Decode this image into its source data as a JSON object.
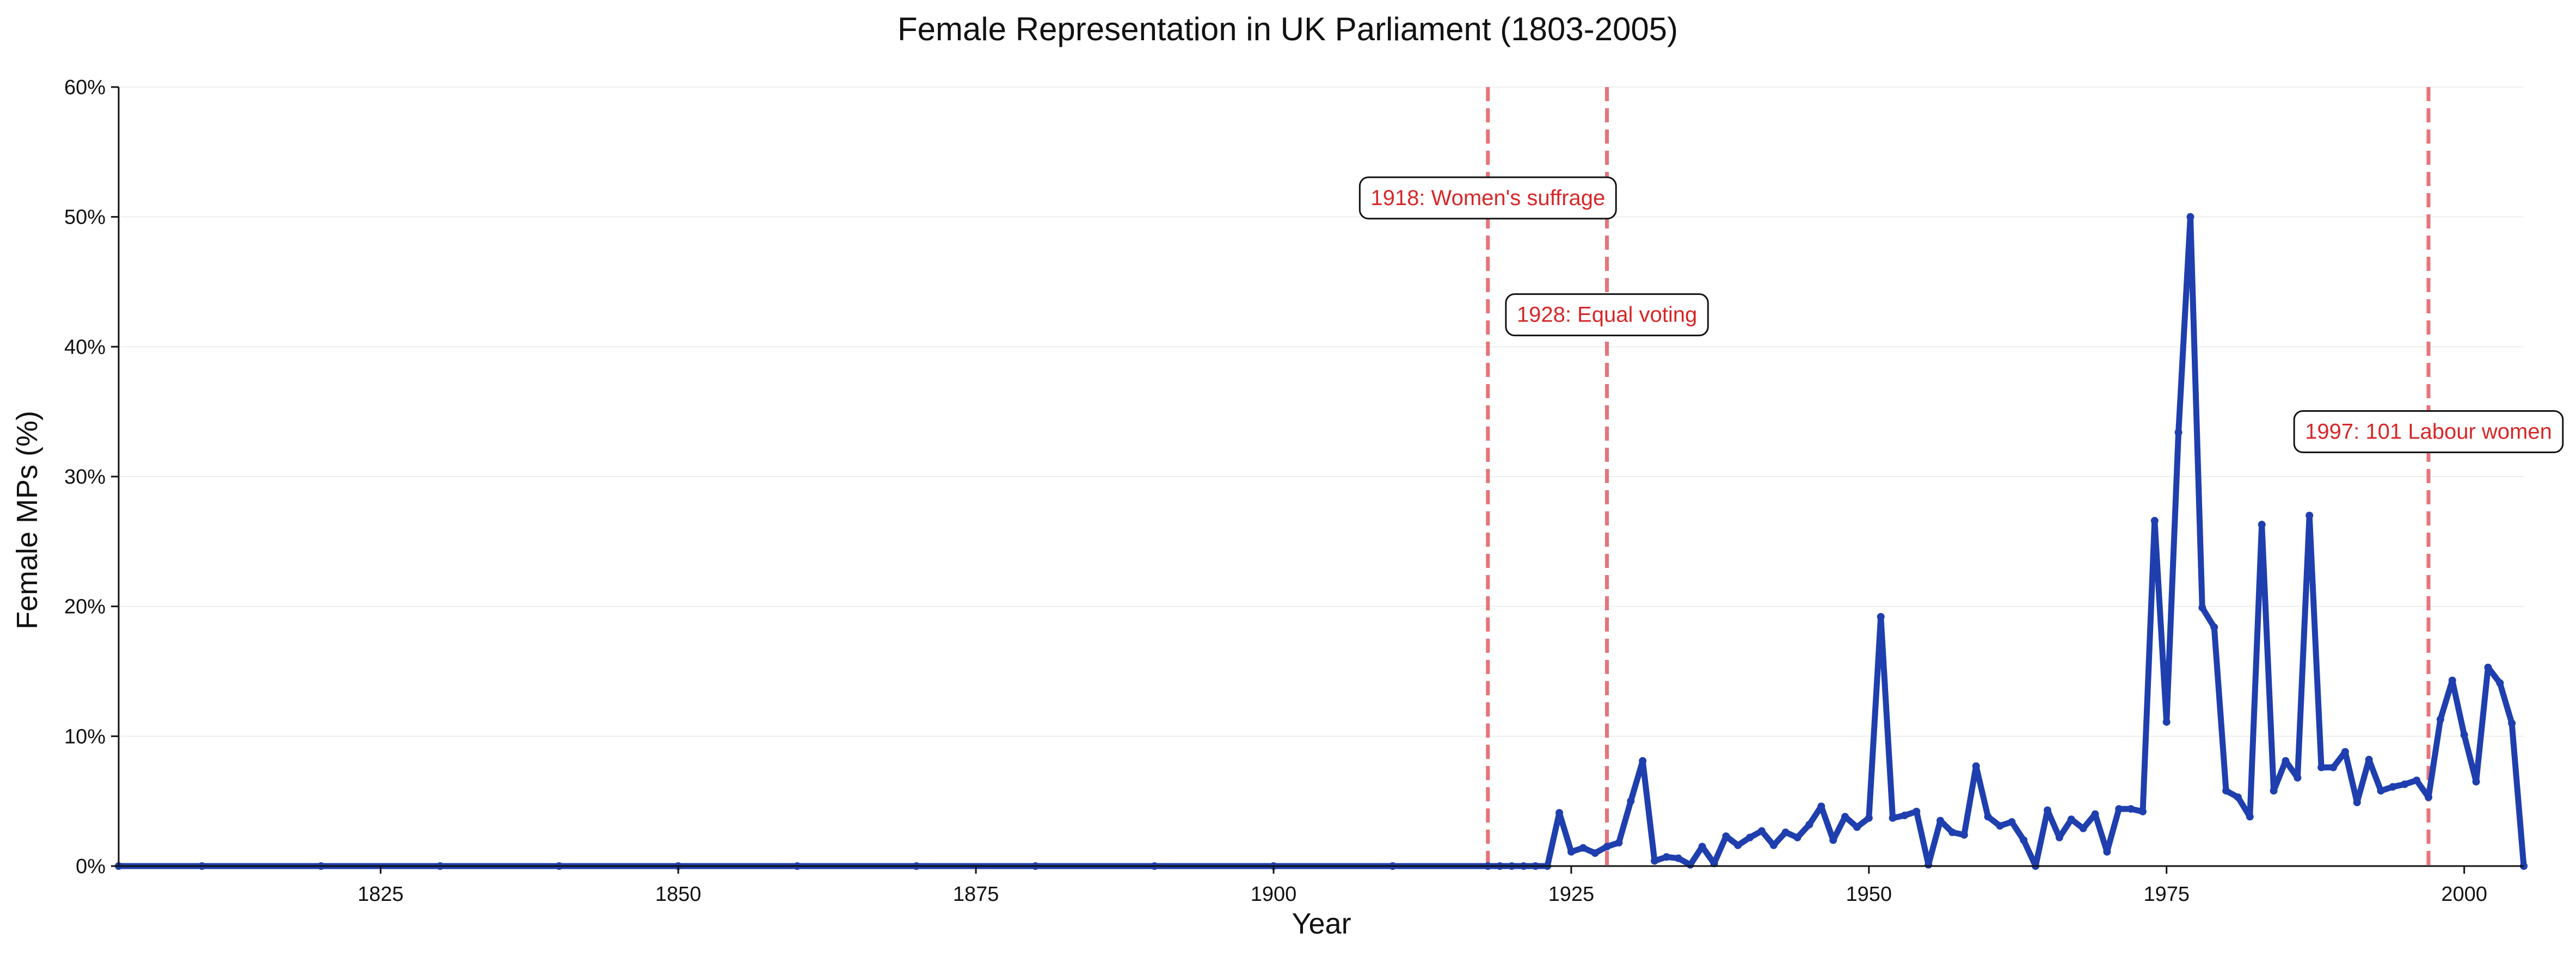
{
  "chart_data": {
    "type": "line",
    "title": "Female Representation in UK Parliament (1803-2005)",
    "xlabel": "Year",
    "ylabel": "Female MPs (%)",
    "xlim": [
      1803,
      2005
    ],
    "ylim": [
      0,
      60
    ],
    "x_ticks": [
      1825,
      1850,
      1875,
      1900,
      1925,
      1950,
      1975,
      2000
    ],
    "y_ticks": [
      0,
      10,
      20,
      30,
      40,
      50,
      60
    ],
    "y_tick_labels": [
      "0%",
      "10%",
      "20%",
      "30%",
      "40%",
      "50%",
      "60%"
    ],
    "grid": "horizontal, faint",
    "line_color": "#1f3fae",
    "annotation_color": "#d62728",
    "vline_color": "#e8737a",
    "annotations": [
      {
        "x": 1918,
        "label": "1918: Women's suffrage",
        "label_y": 51.5
      },
      {
        "x": 1928,
        "label": "1928: Equal voting",
        "label_y": 42.5
      },
      {
        "x": 1997,
        "label": "1997: 101 Labour women",
        "label_y": 33.5
      }
    ],
    "series": [
      {
        "x": [
          1803,
          1810,
          1820,
          1830,
          1840,
          1850,
          1860,
          1870,
          1880,
          1890,
          1900,
          1910,
          1918,
          1919,
          1920,
          1921,
          1922,
          1923,
          1924,
          1925,
          1926,
          1927,
          1928,
          1929,
          1930,
          1931,
          1932,
          1933,
          1934,
          1935,
          1936,
          1937,
          1938,
          1939,
          1940,
          1941,
          1942,
          1943,
          1944,
          1945,
          1946,
          1947,
          1948,
          1949,
          1950,
          1951,
          1952,
          1953,
          1954,
          1955,
          1956,
          1957,
          1958,
          1959,
          1960,
          1961,
          1962,
          1963,
          1964,
          1965,
          1966,
          1967,
          1968,
          1969,
          1970,
          1971,
          1972,
          1973,
          1974,
          1975,
          1976,
          1977,
          1978,
          1979,
          1980,
          1981,
          1982,
          1983,
          1984,
          1985,
          1986,
          1987,
          1988,
          1989,
          1990,
          1991,
          1992,
          1993,
          1994,
          1995,
          1996,
          1997,
          1998,
          1999,
          2000,
          2001,
          2002,
          2003,
          2004,
          2005
        ],
        "values": [
          0,
          0,
          0,
          0,
          0,
          0,
          0,
          0,
          0,
          0,
          0,
          0,
          0,
          0,
          0,
          0,
          0,
          0,
          4.1,
          1.1,
          1.4,
          1.0,
          1.5,
          1.8,
          5.0,
          8.1,
          0.4,
          0.7,
          0.6,
          0.1,
          1.5,
          0.2,
          2.3,
          1.6,
          2.2,
          2.7,
          1.6,
          2.6,
          2.2,
          3.2,
          4.6,
          2.0,
          3.8,
          3.0,
          3.7,
          19.2,
          3.7,
          3.9,
          4.2,
          0.1,
          3.5,
          2.6,
          2.4,
          7.7,
          3.8,
          3.1,
          3.4,
          2.0,
          0.0,
          4.3,
          2.2,
          3.6,
          2.9,
          4.0,
          1.1,
          4.4,
          4.4,
          4.2,
          26.6,
          11.1,
          33.4,
          50.0,
          19.9,
          18.4,
          5.8,
          5.3,
          3.8,
          26.3,
          5.8,
          8.1,
          6.8,
          27.0,
          7.6,
          7.6,
          8.8,
          4.9,
          8.2,
          5.8,
          6.1,
          6.3,
          6.6,
          5.3,
          11.3,
          14.3,
          10.1,
          6.5,
          15.3,
          14.1,
          11.0,
          0
        ]
      }
    ]
  }
}
